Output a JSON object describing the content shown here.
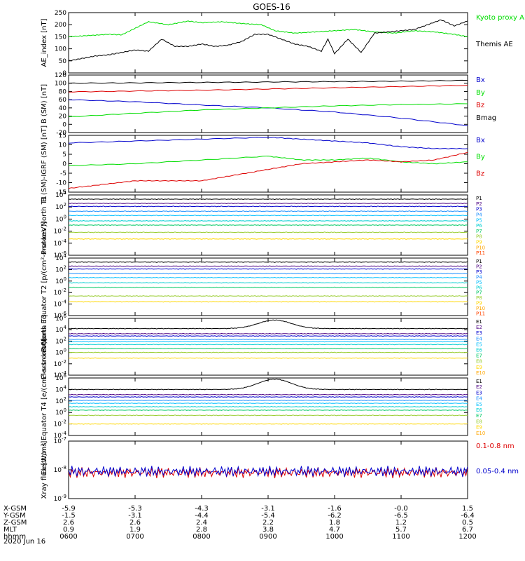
{
  "title": "GOES-16",
  "date_label": "2020 Jun 16",
  "ephemeris": {
    "rows": [
      {
        "label": "X-GSM",
        "values": [
          "-5.9",
          "-5.3",
          "-4.3",
          "-3.1",
          "-1.6",
          "-0.0",
          "1.5"
        ]
      },
      {
        "label": "Y-GSM",
        "values": [
          "-1.5",
          "-3.1",
          "-4.4",
          "-5.4",
          "-6.2",
          "-6.5",
          "-6.4"
        ]
      },
      {
        "label": "Z-GSM",
        "values": [
          "2.6",
          "2.6",
          "2.4",
          "2.2",
          "1.8",
          "1.2",
          "0.5"
        ]
      },
      {
        "label": "MLT",
        "values": [
          "0.9",
          "1.9",
          "2.8",
          "3.8",
          "4.7",
          "5.7",
          "6.7"
        ]
      },
      {
        "label": "hhmm",
        "values": [
          "0600",
          "0700",
          "0800",
          "0900",
          "1000",
          "1100",
          "1200"
        ]
      }
    ]
  },
  "colors": {
    "black": "#000000",
    "green": "#00dd00",
    "blue": "#0000cc",
    "red": "#dd0000",
    "channels": [
      "#000000",
      "#4b0082",
      "#0000cd",
      "#1e90ff",
      "#00bfff",
      "#00ced1",
      "#00c864",
      "#9acd32",
      "#ffd700",
      "#ffa500",
      "#ff4500",
      "#cc0000"
    ]
  },
  "chart_data": [
    {
      "type": "line",
      "panel": "ae",
      "ylabel": "AE_index [nT]",
      "ylim": [
        0,
        250
      ],
      "yscale": "linear",
      "yticks": [
        "0",
        "50",
        "100",
        "150",
        "200",
        "250"
      ],
      "legend": [
        "Kyoto proxy AE",
        "Themis AE"
      ],
      "series": [
        {
          "name": "Kyoto proxy AE",
          "color": "green",
          "x": [
            6.0,
            6.3,
            6.6,
            6.8,
            7.0,
            7.2,
            7.5,
            7.8,
            8.0,
            8.3,
            8.6,
            8.9,
            9.1,
            9.4,
            9.7,
            10.0,
            10.3,
            10.6,
            10.9,
            11.2,
            11.5,
            11.8,
            12.0
          ],
          "y": [
            150,
            155,
            160,
            158,
            185,
            212,
            200,
            215,
            208,
            212,
            205,
            200,
            175,
            165,
            170,
            175,
            180,
            170,
            165,
            175,
            170,
            160,
            150
          ]
        },
        {
          "name": "Themis AE",
          "color": "black",
          "x": [
            6.0,
            6.2,
            6.4,
            6.6,
            6.8,
            7.0,
            7.2,
            7.4,
            7.6,
            7.8,
            8.0,
            8.2,
            8.4,
            8.6,
            8.8,
            9.0,
            9.2,
            9.4,
            9.6,
            9.8,
            9.9,
            10.0,
            10.2,
            10.4,
            10.6,
            10.8,
            11.0,
            11.2,
            11.4,
            11.6,
            11.8,
            12.0
          ],
          "y": [
            50,
            60,
            70,
            75,
            85,
            95,
            90,
            140,
            110,
            110,
            120,
            110,
            115,
            130,
            160,
            160,
            140,
            120,
            110,
            90,
            140,
            80,
            140,
            85,
            165,
            170,
            175,
            180,
            200,
            220,
            195,
            215
          ]
        }
      ]
    },
    {
      "type": "line",
      "panel": "bsm",
      "ylabel": "B (SM) [nT]",
      "ylim": [
        -20,
        120
      ],
      "yscale": "linear",
      "yticks": [
        "-20",
        "0",
        "20",
        "40",
        "60",
        "80",
        "100",
        "120"
      ],
      "legend": [
        "Bx",
        "By",
        "Bz",
        "Bmag"
      ],
      "series": [
        {
          "name": "Bx",
          "color": "blue",
          "x": [
            6,
            7,
            8,
            9,
            10,
            11,
            12
          ],
          "y": [
            60,
            55,
            47,
            40,
            30,
            15,
            -3
          ]
        },
        {
          "name": "By",
          "color": "green",
          "x": [
            6,
            7,
            8,
            9,
            10,
            11,
            12
          ],
          "y": [
            18,
            27,
            35,
            40,
            45,
            48,
            50
          ]
        },
        {
          "name": "Bz",
          "color": "red",
          "x": [
            6,
            7,
            8,
            9,
            10,
            11,
            12
          ],
          "y": [
            79,
            81,
            83,
            86,
            89,
            92,
            95
          ]
        },
        {
          "name": "Bmag",
          "color": "black",
          "x": [
            6,
            7,
            8,
            9,
            10,
            11,
            12
          ],
          "y": [
            100,
            101,
            102,
            103,
            104,
            105,
            107
          ]
        }
      ]
    },
    {
      "type": "line",
      "panel": "bigrf",
      "ylabel": "B (SM)-IGRF (SM) [nT]",
      "ylim": [
        -15,
        15
      ],
      "yscale": "linear",
      "yticks": [
        "-15",
        "-10",
        "-5",
        "0",
        "5",
        "10",
        "15"
      ],
      "legend": [
        "Bx",
        "By",
        "Bz"
      ],
      "series": [
        {
          "name": "Bx",
          "color": "blue",
          "x": [
            6,
            7,
            8,
            9,
            9.5,
            10,
            10.5,
            11,
            11.5,
            12
          ],
          "y": [
            11,
            12,
            13,
            14,
            13,
            12,
            11,
            9,
            8,
            8
          ]
        },
        {
          "name": "By",
          "color": "green",
          "x": [
            6,
            7,
            8,
            9,
            9.5,
            10,
            10.5,
            11,
            11.5,
            12
          ],
          "y": [
            -1,
            0,
            2,
            4,
            2,
            2,
            3,
            1,
            0,
            1
          ]
        },
        {
          "name": "Bz",
          "color": "red",
          "x": [
            6,
            6.5,
            7,
            7.5,
            8,
            8.5,
            9,
            9.5,
            10,
            10.5,
            11,
            11.5,
            12
          ],
          "y": [
            -13,
            -11,
            -9,
            -9,
            -9,
            -6,
            -3,
            0,
            1,
            2,
            1,
            2,
            6
          ]
        }
      ]
    },
    {
      "type": "line",
      "panel": "p_north",
      "ylabel": "Protons North T1",
      "ylim": [
        -6,
        4
      ],
      "yscale": "log",
      "yticks": [
        "10^-6",
        "10^-4",
        "10^-2",
        "10^0",
        "10^2",
        "10^4"
      ],
      "legend": [
        "P1",
        "P2",
        "P3",
        "P4",
        "P5",
        "P6",
        "P7",
        "P8",
        "P9",
        "P10",
        "P11"
      ],
      "series": [
        {
          "name": "P1",
          "level": 3.3
        },
        {
          "name": "P2",
          "level": 2.6
        },
        {
          "name": "P3",
          "level": 2.1
        },
        {
          "name": "P4",
          "level": 1.3
        },
        {
          "name": "P5",
          "level": 0.6
        },
        {
          "name": "P6",
          "level": -0.3
        },
        {
          "name": "P7",
          "level": -1.0
        },
        {
          "name": "P8",
          "level": -2.2
        },
        {
          "name": "P9",
          "level": -3.3
        }
      ]
    },
    {
      "type": "line",
      "panel": "p_equator",
      "ylabel": "Protons Equator T2 [p/(cm²-s-sr-keV)]",
      "ylim": [
        -6,
        4
      ],
      "yscale": "log",
      "yticks": [
        "10^-6",
        "10^-4",
        "10^-2",
        "10^0",
        "10^2",
        "10^4"
      ],
      "legend": [
        "P1",
        "P2",
        "P3",
        "P4",
        "P5",
        "P6",
        "P7",
        "P8",
        "P9",
        "P10",
        "P11"
      ],
      "series": [
        {
          "name": "P1",
          "level": 3.3
        },
        {
          "name": "P2",
          "level": 2.6
        },
        {
          "name": "P3",
          "level": 2.1
        },
        {
          "name": "P4",
          "level": 1.3
        },
        {
          "name": "P5",
          "level": 0.6
        },
        {
          "name": "P6",
          "level": -0.3
        },
        {
          "name": "P7",
          "level": -1.1
        },
        {
          "name": "P8",
          "level": -2.6
        },
        {
          "name": "P9",
          "level": -3.6
        }
      ]
    },
    {
      "type": "line",
      "panel": "e_north",
      "ylabel": "Electrons North T3",
      "ylim": [
        -4,
        6
      ],
      "yscale": "log",
      "yticks": [
        "10^-4",
        "10^-2",
        "10^0",
        "10^2",
        "10^4",
        "10^6"
      ],
      "legend": [
        "E1",
        "E2",
        "E3",
        "E4",
        "E5",
        "E6",
        "E7",
        "E8",
        "E9",
        "E10"
      ],
      "series": [
        {
          "name": "E1",
          "level": 4.2,
          "bump": 1.5
        },
        {
          "name": "E2",
          "level": 3.3
        },
        {
          "name": "E3",
          "level": 2.9
        },
        {
          "name": "E4",
          "level": 2.3
        },
        {
          "name": "E5",
          "level": 1.9
        },
        {
          "name": "E6",
          "level": 1.4
        },
        {
          "name": "E7",
          "level": 0.7
        },
        {
          "name": "E8",
          "level": 0.0
        },
        {
          "name": "E9",
          "level": -1.0
        }
      ]
    },
    {
      "type": "line",
      "panel": "e_equator",
      "ylabel": "Electrons Equator T4 [e/(cm²-s-sr-keV)]",
      "ylim": [
        -4,
        6
      ],
      "yscale": "log",
      "yticks": [
        "10^-4",
        "10^-2",
        "10^0",
        "10^2",
        "10^4",
        "10^6"
      ],
      "legend": [
        "E1",
        "E2",
        "E3",
        "E4",
        "E5",
        "E6",
        "E7",
        "E8",
        "E9",
        "E10"
      ],
      "series": [
        {
          "name": "E1",
          "level": 4.0,
          "bump": 1.8
        },
        {
          "name": "E2",
          "level": 3.1
        },
        {
          "name": "E3",
          "level": 2.7
        },
        {
          "name": "E4",
          "level": 2.1
        },
        {
          "name": "E5",
          "level": 1.6
        },
        {
          "name": "E6",
          "level": 1.0
        },
        {
          "name": "E7",
          "level": 0.4
        },
        {
          "name": "E8",
          "level": -0.5
        },
        {
          "name": "E9",
          "level": -2.0
        }
      ]
    },
    {
      "type": "line",
      "panel": "xray",
      "ylabel": "Xray flux [W/m²]",
      "ylim": [
        -9,
        -7
      ],
      "yscale": "log",
      "yticks": [
        "10^-9",
        "10^-8",
        "10^-7"
      ],
      "legend": [
        "0.1-0.8 nm",
        "0.05-0.4 nm"
      ],
      "series": [
        {
          "name": "0.1-0.8 nm",
          "color": "red",
          "level": -8.1
        },
        {
          "name": "0.05-0.4 nm",
          "color": "blue",
          "level": -8.05
        }
      ]
    }
  ]
}
